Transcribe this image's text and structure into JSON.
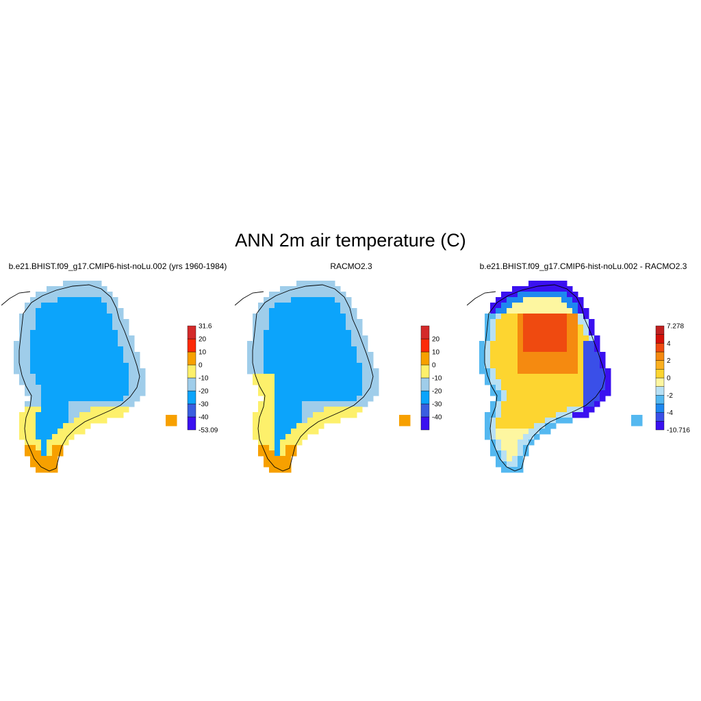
{
  "title": "ANN 2m air temperature (C)",
  "panels": [
    {
      "title": "b.e21.BHIST.f09_g17.CMIP6-hist-noLu.002 (yrs 1960-1984)",
      "kind": "model",
      "colorbar": {
        "colors": [
          "#3a10f0",
          "#3a5ee0",
          "#0ca4fb",
          "#9fcdea",
          "#fdf06b",
          "#f7a000",
          "#fc2a08",
          "#d42a2a"
        ],
        "labels": [
          "-53.09",
          "-40",
          "-30",
          "-20",
          "-10",
          "0",
          "10",
          "20",
          "31.6"
        ]
      }
    },
    {
      "title": "RACMO2.3",
      "kind": "obs",
      "colorbar": {
        "colors": [
          "#3a10f0",
          "#3a5ee0",
          "#0ca4fb",
          "#9fcdea",
          "#fdf06b",
          "#f7a000",
          "#fc2a08",
          "#d42a2a"
        ],
        "labels": [
          "",
          "-40",
          "-30",
          "-20",
          "-10",
          "0",
          "10",
          "20",
          ""
        ]
      }
    },
    {
      "title": "b.e21.BHIST.f09_g17.CMIP6-hist-noLu.002 - RACMO2.3",
      "kind": "diff",
      "colorbar": {
        "colors": [
          "#3a10f0",
          "#3a4fe8",
          "#1e88f0",
          "#54b8f0",
          "#b8e0f4",
          "#fdf6a0",
          "#fdd530",
          "#fbb020",
          "#f58a10",
          "#ef4a10",
          "#d41008",
          "#c02020"
        ],
        "labels": [
          "-10.716",
          "",
          "-4",
          "",
          "-2",
          "",
          "0",
          "",
          "2",
          "",
          "4",
          "",
          "7.278"
        ]
      }
    }
  ]
}
